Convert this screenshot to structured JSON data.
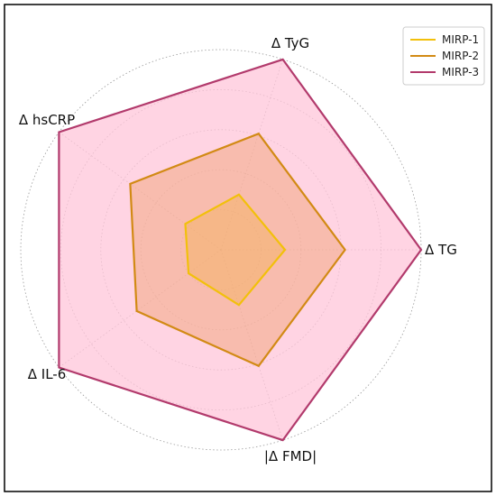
{
  "chart_data": {
    "type": "radar",
    "axes": [
      "Δ TG",
      "Δ TyG",
      "Δ hsCRP",
      "Δ IL-6",
      "|Δ FMD|"
    ],
    "rmax": 1.0,
    "ring_levels": [
      0.2,
      0.4,
      0.6,
      0.8,
      1.0
    ],
    "ring_labels_shown": false,
    "grid": true,
    "legend_position": "top-right",
    "series": [
      {
        "name": "MIRP-1",
        "color": "#f2c00b",
        "fill": "#f5b15c",
        "values": [
          0.32,
          0.29,
          0.22,
          0.2,
          0.29
        ]
      },
      {
        "name": "MIRP-2",
        "color": "#d28a14",
        "fill": "#f0a06c",
        "values": [
          0.62,
          0.61,
          0.56,
          0.52,
          0.61
        ]
      },
      {
        "name": "MIRP-3",
        "color": "#b23a6c",
        "fill": "#ffc6d9",
        "values": [
          1.0,
          1.0,
          1.0,
          1.0,
          1.0
        ]
      }
    ]
  }
}
